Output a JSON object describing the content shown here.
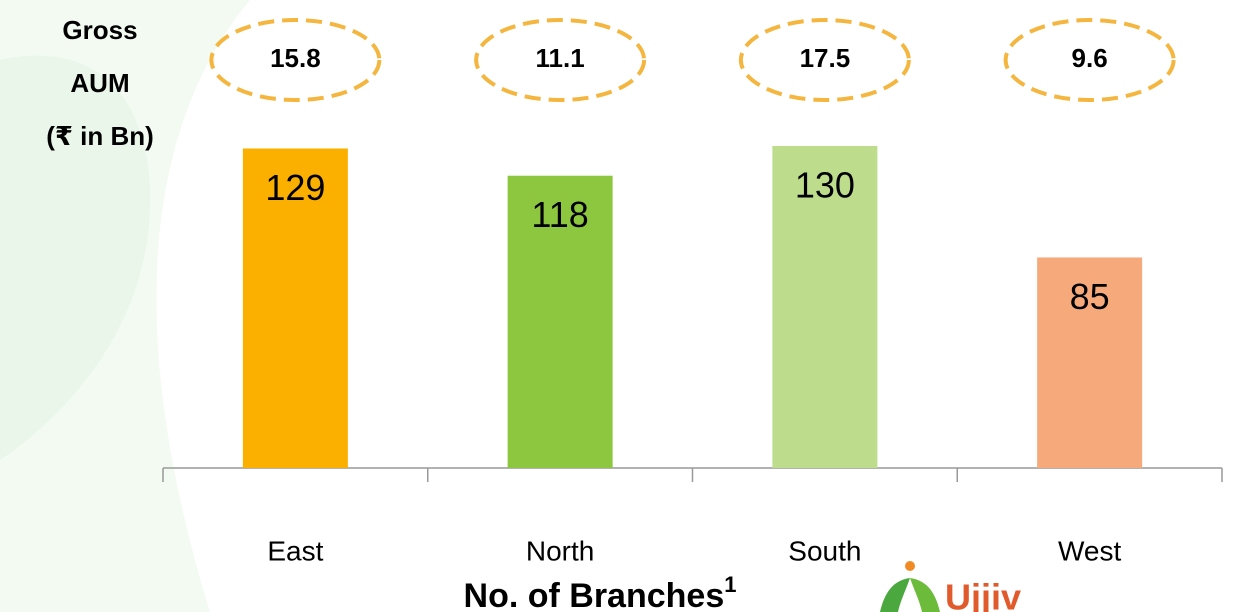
{
  "chart_data": {
    "type": "bar",
    "aum_label": [
      "Gross",
      "AUM",
      "(₹ in Bn)"
    ],
    "categories": [
      "East",
      "North",
      "South",
      "West"
    ],
    "values": [
      129,
      118,
      130,
      85
    ],
    "colors": [
      "#fbb000",
      "#8dc63f",
      "#bddd8c",
      "#f6a97a"
    ],
    "aum_values": [
      15.8,
      11.1,
      17.5,
      9.6
    ],
    "x_label": "No. of Branches",
    "x_label_sup": "1",
    "logo": "Ujjiv"
  }
}
